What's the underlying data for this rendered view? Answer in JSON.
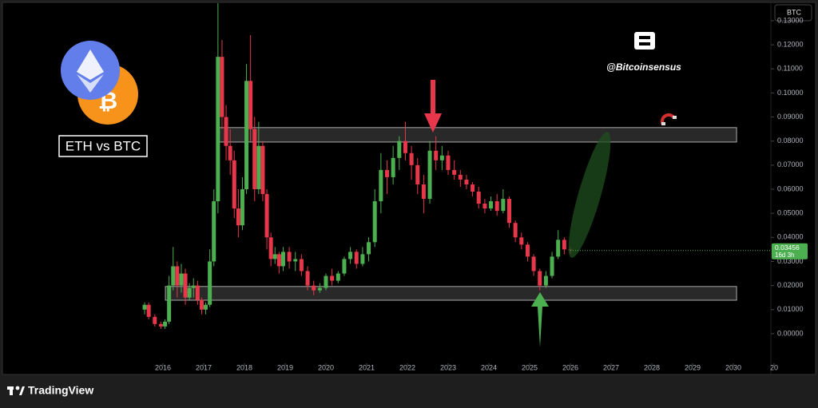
{
  "chart_data": {
    "type": "candlestick",
    "title": "ETH vs BTC",
    "annotation": "@Bitcoinsensus",
    "symbol_button": "BTC",
    "countdown": "16d 3h",
    "up_color": "#4caf50",
    "down_color": "#e8364a",
    "x": [
      2015.55,
      2015.65,
      2015.8,
      2015.95,
      2016.05,
      2016.15,
      2016.25,
      2016.35,
      2016.45,
      2016.55,
      2016.65,
      2016.75,
      2016.85,
      2016.95,
      2017.05,
      2017.15,
      2017.25,
      2017.35,
      2017.45,
      2017.55,
      2017.65,
      2017.75,
      2017.85,
      2017.95,
      2018.05,
      2018.15,
      2018.25,
      2018.35,
      2018.45,
      2018.55,
      2018.65,
      2018.75,
      2018.85,
      2018.95,
      2019.1,
      2019.25,
      2019.4,
      2019.55,
      2019.7,
      2019.85,
      2020.0,
      2020.15,
      2020.3,
      2020.45,
      2020.6,
      2020.75,
      2020.9,
      2021.05,
      2021.2,
      2021.35,
      2021.5,
      2021.65,
      2021.8,
      2021.95,
      2022.1,
      2022.25,
      2022.4,
      2022.55,
      2022.7,
      2022.85,
      2023.0,
      2023.15,
      2023.3,
      2023.45,
      2023.6,
      2023.75,
      2023.9,
      2024.05,
      2024.2,
      2024.35,
      2024.5,
      2024.65,
      2024.8,
      2024.95,
      2025.1,
      2025.25,
      2025.4,
      2025.55,
      2025.7,
      2025.85,
      2026.0
    ],
    "open": [
      0.01,
      0.012,
      0.007,
      0.004,
      0.003,
      0.005,
      0.02,
      0.028,
      0.02,
      0.025,
      0.015,
      0.019,
      0.02,
      0.014,
      0.01,
      0.012,
      0.03,
      0.055,
      0.115,
      0.09,
      0.078,
      0.072,
      0.052,
      0.045,
      0.06,
      0.105,
      0.085,
      0.06,
      0.078,
      0.058,
      0.04,
      0.031,
      0.033,
      0.028,
      0.034,
      0.03,
      0.031,
      0.026,
      0.02,
      0.018,
      0.019,
      0.024,
      0.022,
      0.025,
      0.031,
      0.034,
      0.029,
      0.033,
      0.038,
      0.055,
      0.068,
      0.065,
      0.073,
      0.08,
      0.075,
      0.07,
      0.062,
      0.056,
      0.076,
      0.072,
      0.074,
      0.068,
      0.066,
      0.064,
      0.062,
      0.059,
      0.054,
      0.052,
      0.055,
      0.051,
      0.056,
      0.046,
      0.04,
      0.037,
      0.032,
      0.026,
      0.02,
      0.024,
      0.032,
      0.039,
      0.035
    ],
    "high": [
      0.013,
      0.013,
      0.008,
      0.005,
      0.006,
      0.024,
      0.036,
      0.03,
      0.029,
      0.027,
      0.021,
      0.023,
      0.022,
      0.015,
      0.013,
      0.035,
      0.06,
      0.146,
      0.122,
      0.095,
      0.085,
      0.076,
      0.06,
      0.065,
      0.112,
      0.124,
      0.09,
      0.088,
      0.08,
      0.06,
      0.042,
      0.036,
      0.034,
      0.036,
      0.036,
      0.034,
      0.033,
      0.028,
      0.022,
      0.021,
      0.025,
      0.027,
      0.026,
      0.032,
      0.036,
      0.035,
      0.036,
      0.04,
      0.06,
      0.075,
      0.072,
      0.078,
      0.082,
      0.088,
      0.078,
      0.073,
      0.066,
      0.08,
      0.082,
      0.078,
      0.076,
      0.072,
      0.068,
      0.066,
      0.063,
      0.061,
      0.056,
      0.057,
      0.058,
      0.06,
      0.057,
      0.047,
      0.042,
      0.038,
      0.033,
      0.027,
      0.026,
      0.034,
      0.043,
      0.04,
      0.036
    ],
    "low": [
      0.008,
      0.006,
      0.003,
      0.002,
      0.002,
      0.004,
      0.018,
      0.015,
      0.017,
      0.012,
      0.014,
      0.015,
      0.012,
      0.008,
      0.008,
      0.011,
      0.028,
      0.05,
      0.085,
      0.072,
      0.066,
      0.048,
      0.04,
      0.043,
      0.058,
      0.08,
      0.055,
      0.058,
      0.055,
      0.035,
      0.028,
      0.029,
      0.025,
      0.026,
      0.027,
      0.026,
      0.024,
      0.018,
      0.016,
      0.017,
      0.018,
      0.02,
      0.021,
      0.024,
      0.029,
      0.027,
      0.028,
      0.03,
      0.036,
      0.05,
      0.058,
      0.062,
      0.068,
      0.072,
      0.064,
      0.058,
      0.05,
      0.054,
      0.068,
      0.068,
      0.066,
      0.064,
      0.061,
      0.06,
      0.057,
      0.052,
      0.05,
      0.051,
      0.049,
      0.05,
      0.044,
      0.038,
      0.035,
      0.03,
      0.024,
      0.018,
      0.019,
      0.023,
      0.031,
      0.033,
      0.033
    ],
    "close": [
      0.012,
      0.007,
      0.004,
      0.003,
      0.005,
      0.02,
      0.028,
      0.02,
      0.025,
      0.015,
      0.019,
      0.02,
      0.014,
      0.01,
      0.012,
      0.03,
      0.055,
      0.115,
      0.09,
      0.078,
      0.072,
      0.052,
      0.045,
      0.06,
      0.105,
      0.085,
      0.06,
      0.078,
      0.058,
      0.04,
      0.031,
      0.033,
      0.028,
      0.034,
      0.03,
      0.031,
      0.026,
      0.02,
      0.018,
      0.019,
      0.024,
      0.022,
      0.025,
      0.031,
      0.034,
      0.029,
      0.033,
      0.038,
      0.055,
      0.068,
      0.065,
      0.073,
      0.08,
      0.075,
      0.07,
      0.062,
      0.056,
      0.076,
      0.072,
      0.074,
      0.068,
      0.066,
      0.064,
      0.062,
      0.059,
      0.054,
      0.052,
      0.055,
      0.051,
      0.056,
      0.046,
      0.04,
      0.037,
      0.032,
      0.026,
      0.02,
      0.024,
      0.032,
      0.039,
      0.035,
      0.03456
    ],
    "zones": [
      {
        "from": 0.0796,
        "to": 0.0856,
        "x": [
          2017.33,
          2030.08
        ]
      },
      {
        "from": 0.0139,
        "to": 0.0196,
        "x": [
          2016.06,
          2030.08
        ]
      }
    ],
    "xlim": [
      2012,
      2031
    ],
    "xticks": [
      2016,
      2017,
      2018,
      2019,
      2020,
      2021,
      2022,
      2023,
      2024,
      2025,
      2026,
      2027,
      2028,
      2029,
      2030,
      {
        "value": 2031,
        "label": "20"
      }
    ],
    "ylim": [
      -0.0123,
      0.1386
    ],
    "yticks": [
      {
        "value": 0,
        "label": "0.00000"
      },
      {
        "value": 0.01,
        "label": "0.01000"
      },
      {
        "value": 0.02,
        "label": "0.02000"
      },
      {
        "value": 0.03,
        "label": "0.03000"
      },
      {
        "value": 0.04,
        "label": "0.04000"
      },
      {
        "value": 0.05,
        "label": "0.05000"
      },
      {
        "value": 0.06,
        "label": "0.06000"
      },
      {
        "value": 0.07,
        "label": "0.07000"
      },
      {
        "value": 0.08,
        "label": "0.08000"
      },
      {
        "value": 0.09,
        "label": "0.09000"
      },
      {
        "value": 0.1,
        "label": "0.10000"
      },
      {
        "value": 0.11,
        "label": "0.11000"
      },
      {
        "value": 0.12,
        "label": "0.12000"
      },
      {
        "value": 0.13,
        "label": "0.13000"
      }
    ]
  },
  "footer": "TradingView"
}
